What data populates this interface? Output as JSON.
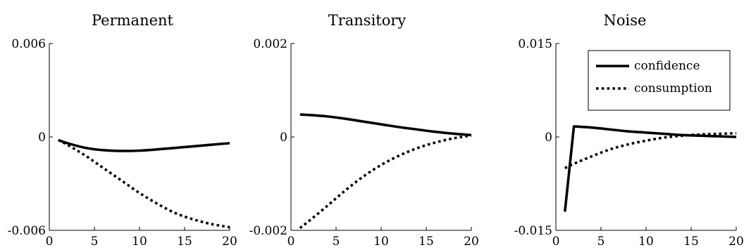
{
  "chart_data": [
    {
      "type": "line",
      "title": "Permanent",
      "xlim": [
        0,
        20
      ],
      "ylim": [
        -0.006,
        0.006
      ],
      "xticks": [
        "0",
        "5",
        "10",
        "15",
        "20"
      ],
      "yticks": [
        "-0.006",
        "0",
        "0.006"
      ],
      "grid": false,
      "series": [
        {
          "name": "confidence",
          "style": "solid",
          "x": [
            1,
            2,
            4,
            6,
            8,
            10,
            12,
            14,
            16,
            18,
            20
          ],
          "y": [
            -0.0002,
            -0.0004,
            -0.0007,
            -0.00085,
            -0.0009,
            -0.00088,
            -0.0008,
            -0.0007,
            -0.0006,
            -0.0005,
            -0.0004
          ]
        },
        {
          "name": "consumption",
          "style": "dotted",
          "x": [
            1,
            2,
            4,
            6,
            8,
            10,
            12,
            14,
            16,
            18,
            20
          ],
          "y": [
            -0.0002,
            -0.0005,
            -0.0012,
            -0.002,
            -0.0028,
            -0.0036,
            -0.0043,
            -0.0049,
            -0.0053,
            -0.0056,
            -0.0058
          ]
        }
      ]
    },
    {
      "type": "line",
      "title": "Transitory",
      "xlim": [
        0,
        20
      ],
      "ylim": [
        -0.002,
        0.002
      ],
      "xticks": [
        "0",
        "5",
        "10",
        "15",
        "20"
      ],
      "yticks": [
        "-0.002",
        "0",
        "0.002"
      ],
      "grid": false,
      "series": [
        {
          "name": "confidence",
          "style": "solid",
          "x": [
            1,
            2,
            4,
            6,
            8,
            10,
            12,
            14,
            16,
            18,
            20
          ],
          "y": [
            0.00048,
            0.00047,
            0.00044,
            0.00039,
            0.00033,
            0.00027,
            0.00021,
            0.00016,
            0.00011,
            7e-05,
            4e-05
          ]
        },
        {
          "name": "consumption",
          "style": "dotted",
          "x": [
            1,
            2,
            4,
            6,
            8,
            10,
            12,
            14,
            16,
            18,
            20
          ],
          "y": [
            -0.00195,
            -0.0018,
            -0.00148,
            -0.00115,
            -0.00085,
            -0.0006,
            -0.0004,
            -0.00024,
            -0.00012,
            -3e-05,
            3e-05
          ]
        }
      ]
    },
    {
      "type": "line",
      "title": "Noise",
      "xlim": [
        0,
        20
      ],
      "ylim": [
        -0.015,
        0.015
      ],
      "xticks": [
        "0",
        "5",
        "10",
        "15",
        "20"
      ],
      "yticks": [
        "-0.015",
        "0",
        "0.015"
      ],
      "grid": false,
      "legend_position": "top-right",
      "series": [
        {
          "name": "confidence",
          "style": "solid",
          "x": [
            1,
            2,
            4,
            6,
            8,
            10,
            12,
            14,
            16,
            18,
            20
          ],
          "y": [
            -0.012,
            0.0017,
            0.0015,
            0.0012,
            0.0009,
            0.0007,
            0.0005,
            0.0003,
            0.0002,
            0.0001,
            0.0
          ]
        },
        {
          "name": "consumption",
          "style": "dotted",
          "x": [
            1,
            2,
            4,
            6,
            8,
            10,
            12,
            14,
            16,
            18,
            20
          ],
          "y": [
            -0.005,
            -0.0043,
            -0.0031,
            -0.002,
            -0.0012,
            -0.0006,
            -0.0001,
            0.0002,
            0.0004,
            0.0005,
            0.0006
          ]
        }
      ],
      "legend": [
        "confidence",
        "consumption"
      ]
    }
  ]
}
